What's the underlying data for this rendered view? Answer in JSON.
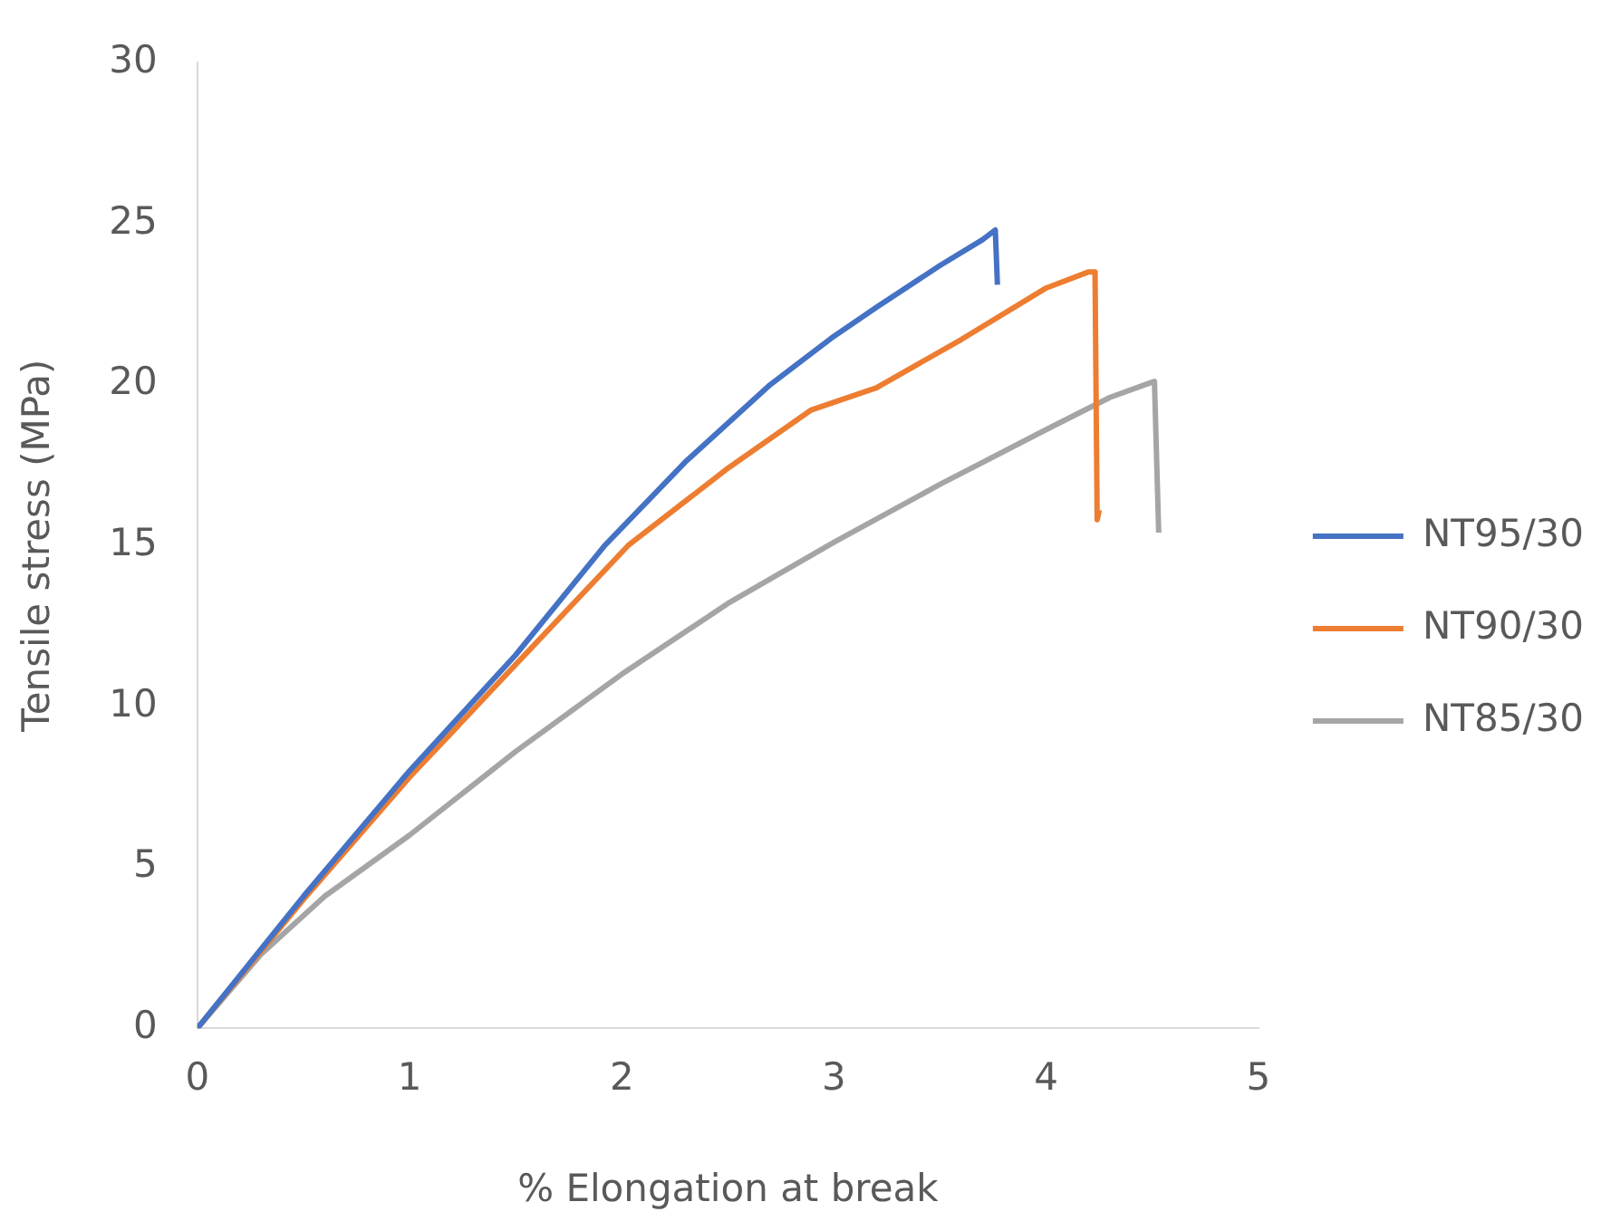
{
  "chart_data": {
    "type": "line",
    "xlabel": "% Elongation at break",
    "ylabel": "Tensile stress (MPa)",
    "xlim": [
      0,
      5
    ],
    "xticks": [
      0,
      1,
      2,
      3,
      4,
      5
    ],
    "ylim": [
      0,
      30
    ],
    "yticks": [
      0,
      5,
      10,
      15,
      20,
      25,
      30
    ],
    "grid": false,
    "legend": "right",
    "marker": "none",
    "line_style": "solid",
    "series": [
      {
        "name": "NT95/30",
        "color": "#4472c4",
        "x": [
          0,
          0.5,
          1,
          1.5,
          1.92,
          2.3,
          2.7,
          3.0,
          3.2,
          3.5,
          3.7,
          3.76,
          3.77
        ],
        "values": [
          0,
          4.1,
          8.0,
          11.6,
          15.0,
          17.6,
          20.0,
          21.5,
          22.4,
          23.7,
          24.5,
          24.8,
          23.1
        ]
      },
      {
        "name": "NT90/30",
        "color": "#ed7d31",
        "x": [
          0,
          0.5,
          1,
          1.5,
          2.03,
          2.5,
          2.89,
          3.2,
          3.6,
          4.0,
          4.2,
          4.23,
          4.24,
          4.25
        ],
        "values": [
          0,
          4.0,
          7.8,
          11.3,
          15.0,
          17.4,
          19.2,
          19.9,
          21.4,
          23.0,
          23.5,
          23.5,
          15.8,
          16.1
        ]
      },
      {
        "name": "NT85/30",
        "color": "#a5a5a5",
        "x": [
          0,
          0.3,
          0.6,
          1,
          1.5,
          2,
          2.5,
          3,
          3.5,
          4,
          4.3,
          4.51,
          4.53
        ],
        "values": [
          0,
          2.3,
          4.1,
          6.0,
          8.6,
          11.0,
          13.2,
          15.1,
          16.9,
          18.6,
          19.6,
          20.1,
          15.4
        ]
      }
    ]
  }
}
